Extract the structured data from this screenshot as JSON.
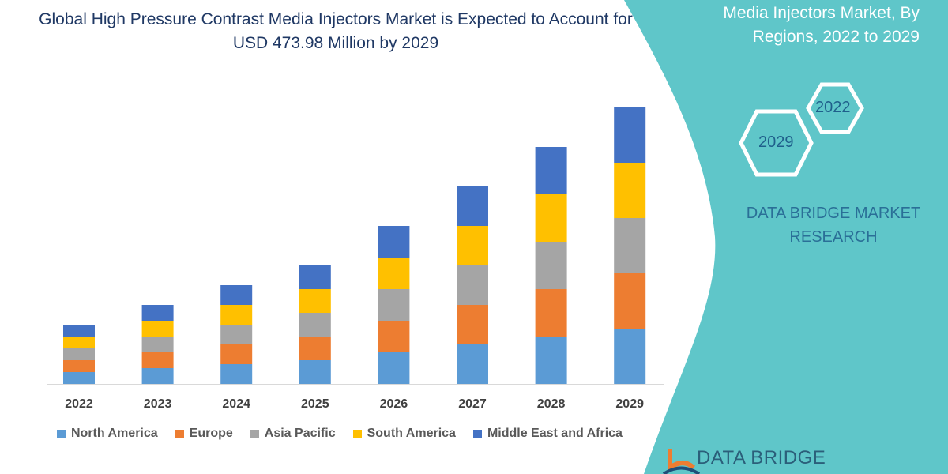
{
  "title": "Global High Pressure Contrast Media Injectors Market is Expected to Account for USD 473.98 Million by 2029",
  "side_panel": {
    "title_lines": [
      "Media Injectors Market, By",
      "Regions, 2022 to 2029"
    ],
    "hex_labels": [
      "2022",
      "2029"
    ],
    "brand": "DATA BRIDGE MARKET RESEARCH",
    "logo_text": "DATA BRIDGE",
    "color": "#5fc6c9"
  },
  "chart_data": {
    "type": "bar",
    "stacked": true,
    "title": "Global High Pressure Contrast Media Injectors Market is Expected to Account for USD 473.98 Million by 2029",
    "xlabel": "",
    "ylabel": "",
    "grid": false,
    "legend_position": "bottom",
    "categories": [
      "2022",
      "2023",
      "2024",
      "2025",
      "2026",
      "2027",
      "2028",
      "2029"
    ],
    "series": [
      {
        "name": "North America",
        "color": "#5b9bd5",
        "values": [
          15,
          20,
          25,
          30,
          40,
          50,
          60,
          70
        ]
      },
      {
        "name": "Europe",
        "color": "#ed7d31",
        "values": [
          15,
          20,
          25,
          30,
          40,
          50,
          60,
          70
        ]
      },
      {
        "name": "Asia Pacific",
        "color": "#a5a5a5",
        "values": [
          15,
          20,
          25,
          30,
          40,
          50,
          60,
          70
        ]
      },
      {
        "name": "South America",
        "color": "#ffc000",
        "values": [
          15,
          20,
          25,
          30,
          40,
          50,
          60,
          70
        ]
      },
      {
        "name": "Middle East and Africa",
        "color": "#4472c4",
        "values": [
          15,
          20,
          25,
          30,
          40,
          50,
          60,
          70
        ]
      }
    ]
  }
}
